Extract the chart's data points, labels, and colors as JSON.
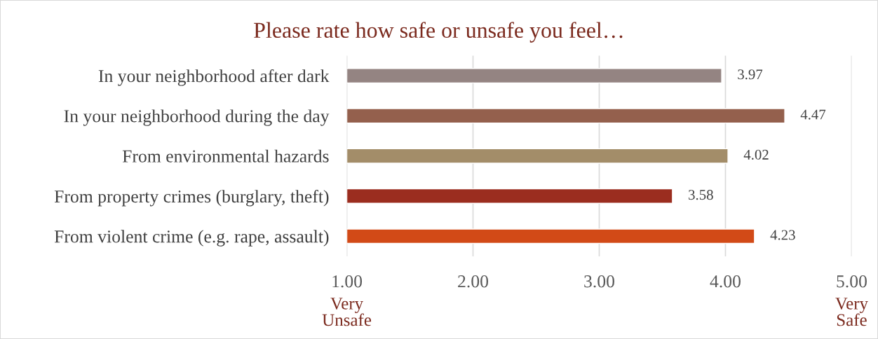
{
  "chart_data": {
    "type": "bar",
    "orientation": "horizontal",
    "title": "Please rate how safe or unsafe you feel…",
    "categories": [
      "In your neighborhood after dark",
      "In your neighborhood during the day",
      "From environmental hazards",
      "From property crimes (burglary, theft)",
      "From violent crime (e.g. rape, assault)"
    ],
    "values": [
      3.97,
      4.47,
      4.02,
      3.58,
      4.23
    ],
    "colors": [
      "#948482",
      "#94604d",
      "#a38d69",
      "#9b2d1f",
      "#d24a17"
    ],
    "xlim": [
      1,
      5
    ],
    "xticks": [
      {
        "value": 1,
        "label": "1.00"
      },
      {
        "value": 2,
        "label": "2.00"
      },
      {
        "value": 3,
        "label": "3.00"
      },
      {
        "value": 4,
        "label": "4.00"
      },
      {
        "value": 5,
        "label": "5.00"
      }
    ],
    "grid": "x",
    "data_labels": true,
    "annotations": [
      "Very\nUnsafe",
      "Very\nSafe"
    ]
  }
}
